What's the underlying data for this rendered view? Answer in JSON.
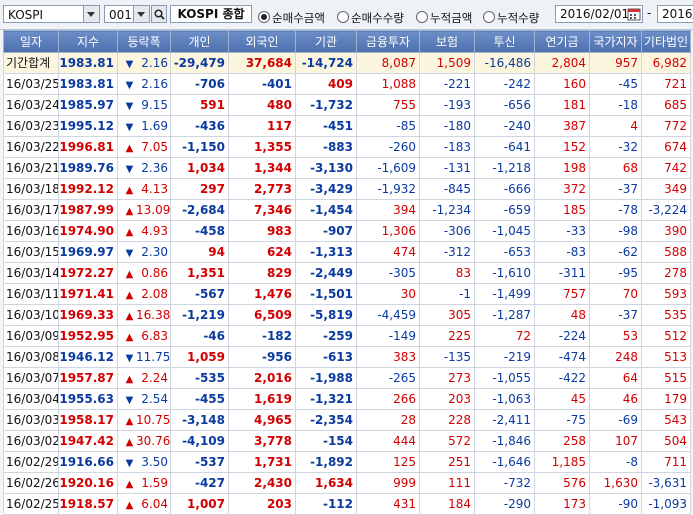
{
  "toolbar": {
    "market": "KOSPI",
    "code": "001",
    "index_name": "KOSPI 종합",
    "radios": [
      {
        "label": "순매수금액",
        "selected": true
      },
      {
        "label": "순매수수량",
        "selected": false
      },
      {
        "label": "누적금액",
        "selected": false
      },
      {
        "label": "누적수량",
        "selected": false
      }
    ],
    "date_from": "2016/02/01",
    "date_to": "2016/",
    "separator": "-"
  },
  "table": {
    "headers": [
      "일자",
      "지수",
      "등락폭",
      "개인",
      "외국인",
      "기관",
      "금융투자",
      "보험",
      "투신",
      "연기금",
      "국가지자",
      "기타법인"
    ],
    "rows": [
      {
        "date": "기간합계",
        "index": "1983.81",
        "dir": "down",
        "change": "2.16",
        "indiv": "-29,479",
        "foreign": "37,684",
        "inst": "-14,724",
        "fin": "8,087",
        "ins": "1,509",
        "trust": "-16,486",
        "pension": "2,804",
        "gov": "957",
        "etc": "6,982",
        "sum": true
      },
      {
        "date": "16/03/25",
        "index": "1983.81",
        "dir": "down",
        "change": "2.16",
        "indiv": "-706",
        "foreign": "-401",
        "inst": "409",
        "fin": "1,088",
        "ins": "-221",
        "trust": "-242",
        "pension": "160",
        "gov": "-45",
        "etc": "721"
      },
      {
        "date": "16/03/24",
        "index": "1985.97",
        "dir": "down",
        "change": "9.15",
        "indiv": "591",
        "foreign": "480",
        "inst": "-1,732",
        "fin": "755",
        "ins": "-193",
        "trust": "-656",
        "pension": "181",
        "gov": "-18",
        "etc": "685"
      },
      {
        "date": "16/03/23",
        "index": "1995.12",
        "dir": "down",
        "change": "1.69",
        "indiv": "-436",
        "foreign": "117",
        "inst": "-451",
        "fin": "-85",
        "ins": "-180",
        "trust": "-240",
        "pension": "387",
        "gov": "4",
        "etc": "772"
      },
      {
        "date": "16/03/22",
        "index": "1996.81",
        "dir": "up",
        "change": "7.05",
        "indiv": "-1,150",
        "foreign": "1,355",
        "inst": "-883",
        "fin": "-260",
        "ins": "-183",
        "trust": "-641",
        "pension": "152",
        "gov": "-32",
        "etc": "674"
      },
      {
        "date": "16/03/21",
        "index": "1989.76",
        "dir": "down",
        "change": "2.36",
        "indiv": "1,034",
        "foreign": "1,344",
        "inst": "-3,130",
        "fin": "-1,609",
        "ins": "-131",
        "trust": "-1,218",
        "pension": "198",
        "gov": "68",
        "etc": "742"
      },
      {
        "date": "16/03/18",
        "index": "1992.12",
        "dir": "up",
        "change": "4.13",
        "indiv": "297",
        "foreign": "2,773",
        "inst": "-3,429",
        "fin": "-1,932",
        "ins": "-845",
        "trust": "-666",
        "pension": "372",
        "gov": "-37",
        "etc": "349"
      },
      {
        "date": "16/03/17",
        "index": "1987.99",
        "dir": "up",
        "change": "13.09",
        "indiv": "-2,684",
        "foreign": "7,346",
        "inst": "-1,454",
        "fin": "394",
        "ins": "-1,234",
        "trust": "-659",
        "pension": "185",
        "gov": "-78",
        "etc": "-3,224"
      },
      {
        "date": "16/03/16",
        "index": "1974.90",
        "dir": "up",
        "change": "4.93",
        "indiv": "-458",
        "foreign": "983",
        "inst": "-907",
        "fin": "1,306",
        "ins": "-306",
        "trust": "-1,045",
        "pension": "-33",
        "gov": "-98",
        "etc": "390"
      },
      {
        "date": "16/03/15",
        "index": "1969.97",
        "dir": "down",
        "change": "2.30",
        "indiv": "94",
        "foreign": "624",
        "inst": "-1,313",
        "fin": "474",
        "ins": "-312",
        "trust": "-653",
        "pension": "-83",
        "gov": "-62",
        "etc": "588"
      },
      {
        "date": "16/03/14",
        "index": "1972.27",
        "dir": "up",
        "change": "0.86",
        "indiv": "1,351",
        "foreign": "829",
        "inst": "-2,449",
        "fin": "-305",
        "ins": "83",
        "trust": "-1,610",
        "pension": "-311",
        "gov": "-95",
        "etc": "278"
      },
      {
        "date": "16/03/11",
        "index": "1971.41",
        "dir": "up",
        "change": "2.08",
        "indiv": "-567",
        "foreign": "1,476",
        "inst": "-1,501",
        "fin": "30",
        "ins": "-1",
        "trust": "-1,499",
        "pension": "757",
        "gov": "70",
        "etc": "593"
      },
      {
        "date": "16/03/10",
        "index": "1969.33",
        "dir": "up",
        "change": "16.38",
        "indiv": "-1,219",
        "foreign": "6,509",
        "inst": "-5,819",
        "fin": "-4,459",
        "ins": "305",
        "trust": "-1,287",
        "pension": "48",
        "gov": "-37",
        "etc": "535"
      },
      {
        "date": "16/03/09",
        "index": "1952.95",
        "dir": "up",
        "change": "6.83",
        "indiv": "-46",
        "foreign": "-182",
        "inst": "-259",
        "fin": "-149",
        "ins": "225",
        "trust": "72",
        "pension": "-224",
        "gov": "53",
        "etc": "512"
      },
      {
        "date": "16/03/08",
        "index": "1946.12",
        "dir": "down",
        "change": "11.75",
        "indiv": "1,059",
        "foreign": "-956",
        "inst": "-613",
        "fin": "383",
        "ins": "-135",
        "trust": "-219",
        "pension": "-474",
        "gov": "248",
        "etc": "513"
      },
      {
        "date": "16/03/07",
        "index": "1957.87",
        "dir": "up",
        "change": "2.24",
        "indiv": "-535",
        "foreign": "2,016",
        "inst": "-1,988",
        "fin": "-265",
        "ins": "273",
        "trust": "-1,055",
        "pension": "-422",
        "gov": "64",
        "etc": "515"
      },
      {
        "date": "16/03/04",
        "index": "1955.63",
        "dir": "down",
        "change": "2.54",
        "indiv": "-455",
        "foreign": "1,619",
        "inst": "-1,321",
        "fin": "266",
        "ins": "203",
        "trust": "-1,063",
        "pension": "45",
        "gov": "46",
        "etc": "179"
      },
      {
        "date": "16/03/03",
        "index": "1958.17",
        "dir": "up",
        "change": "10.75",
        "indiv": "-3,148",
        "foreign": "4,965",
        "inst": "-2,354",
        "fin": "28",
        "ins": "228",
        "trust": "-2,411",
        "pension": "-75",
        "gov": "-69",
        "etc": "543"
      },
      {
        "date": "16/03/02",
        "index": "1947.42",
        "dir": "up",
        "change": "30.76",
        "indiv": "-4,109",
        "foreign": "3,778",
        "inst": "-154",
        "fin": "444",
        "ins": "572",
        "trust": "-1,846",
        "pension": "258",
        "gov": "107",
        "etc": "504"
      },
      {
        "date": "16/02/29",
        "index": "1916.66",
        "dir": "down",
        "change": "3.50",
        "indiv": "-537",
        "foreign": "1,731",
        "inst": "-1,892",
        "fin": "125",
        "ins": "251",
        "trust": "-1,646",
        "pension": "1,185",
        "gov": "-8",
        "etc": "711"
      },
      {
        "date": "16/02/26",
        "index": "1920.16",
        "dir": "up",
        "change": "1.59",
        "indiv": "-427",
        "foreign": "2,430",
        "inst": "1,634",
        "fin": "999",
        "ins": "111",
        "trust": "-732",
        "pension": "576",
        "gov": "1,630",
        "etc": "-3,631"
      },
      {
        "date": "16/02/25",
        "index": "1918.57",
        "dir": "up",
        "change": "6.04",
        "indiv": "1,007",
        "foreign": "203",
        "inst": "-112",
        "fin": "431",
        "ins": "184",
        "trust": "-290",
        "pension": "173",
        "gov": "-90",
        "etc": "-1,093"
      }
    ]
  }
}
